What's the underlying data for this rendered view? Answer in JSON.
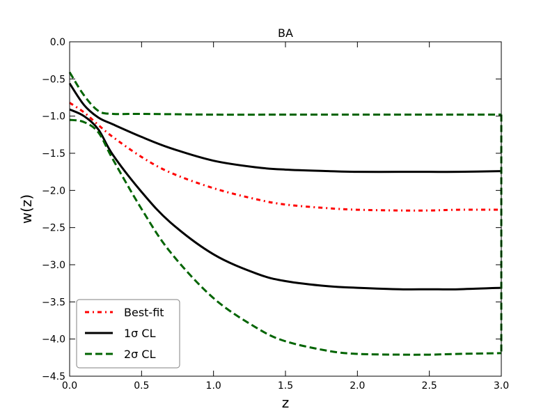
{
  "chart_data": {
    "type": "line",
    "title": "BA",
    "xlabel": "z",
    "ylabel": "w(z)",
    "xlim": [
      0.0,
      3.0
    ],
    "ylim": [
      -4.5,
      0.0
    ],
    "x_ticks": [
      0.0,
      0.5,
      1.0,
      1.5,
      2.0,
      2.5,
      3.0
    ],
    "x_tick_labels": [
      "0.0",
      "0.5",
      "1.0",
      "1.5",
      "2.0",
      "2.5",
      "3.0"
    ],
    "y_ticks": [
      0.0,
      -0.5,
      -1.0,
      -1.5,
      -2.0,
      -2.5,
      -3.0,
      -3.5,
      -4.0,
      -4.5
    ],
    "y_tick_labels": [
      "0.0",
      "−0.5",
      "−1.0",
      "−1.5",
      "−2.0",
      "−2.5",
      "−3.0",
      "−3.5",
      "−4.0",
      "−4.5"
    ],
    "grid": false,
    "legend_position": "lower-left",
    "legend": [
      {
        "label": "Best-fit",
        "color": "#ff0000",
        "style": "dashdot"
      },
      {
        "label": "1σ CL",
        "color": "#000000",
        "style": "solid"
      },
      {
        "label": "2σ CL",
        "color": "#006400",
        "style": "dashed"
      }
    ],
    "series": [
      {
        "name": "Best-fit",
        "color": "#ff0000",
        "style": "dashdot",
        "x": [
          0.0,
          0.1,
          0.2,
          0.3,
          0.5,
          0.7,
          1.0,
          1.3,
          1.5,
          1.8,
          2.0,
          2.3,
          2.5,
          2.7,
          3.0
        ],
        "y": [
          -0.82,
          -0.95,
          -1.12,
          -1.28,
          -1.55,
          -1.76,
          -1.97,
          -2.12,
          -2.19,
          -2.24,
          -2.26,
          -2.27,
          -2.27,
          -2.26,
          -2.26
        ]
      },
      {
        "name": "1σ CL upper",
        "color": "#000000",
        "style": "solid",
        "x": [
          0.0,
          0.1,
          0.2,
          0.3,
          0.5,
          0.7,
          1.0,
          1.3,
          1.5,
          1.8,
          2.0,
          2.3,
          2.5,
          2.7,
          3.0
        ],
        "y": [
          -0.56,
          -0.85,
          -1.02,
          -1.11,
          -1.28,
          -1.43,
          -1.6,
          -1.69,
          -1.72,
          -1.74,
          -1.75,
          -1.75,
          -1.75,
          -1.75,
          -1.74
        ]
      },
      {
        "name": "1σ CL lower",
        "color": "#000000",
        "style": "solid",
        "x": [
          0.0,
          0.1,
          0.2,
          0.3,
          0.5,
          0.7,
          1.0,
          1.3,
          1.5,
          1.8,
          2.0,
          2.3,
          2.5,
          2.7,
          3.0
        ],
        "y": [
          -0.91,
          -1.0,
          -1.18,
          -1.52,
          -2.02,
          -2.43,
          -2.86,
          -3.12,
          -3.22,
          -3.29,
          -3.31,
          -3.33,
          -3.33,
          -3.33,
          -3.31
        ]
      },
      {
        "name": "2σ CL upper",
        "color": "#006400",
        "style": "dashed",
        "x": [
          0.0,
          0.1,
          0.2,
          0.3,
          0.5,
          1.0,
          1.5,
          2.0,
          2.5,
          3.0
        ],
        "y": [
          -0.41,
          -0.72,
          -0.93,
          -0.97,
          -0.97,
          -0.98,
          -0.98,
          -0.98,
          -0.98,
          -0.98
        ]
      },
      {
        "name": "2σ CL lower",
        "color": "#006400",
        "style": "dashed",
        "x": [
          0.0,
          0.1,
          0.2,
          0.3,
          0.5,
          0.7,
          1.0,
          1.3,
          1.5,
          1.8,
          2.0,
          2.3,
          2.5,
          2.7,
          3.0
        ],
        "y": [
          -1.05,
          -1.08,
          -1.22,
          -1.58,
          -2.25,
          -2.83,
          -3.45,
          -3.85,
          -4.03,
          -4.16,
          -4.2,
          -4.21,
          -4.21,
          -4.2,
          -4.19
        ]
      }
    ]
  }
}
